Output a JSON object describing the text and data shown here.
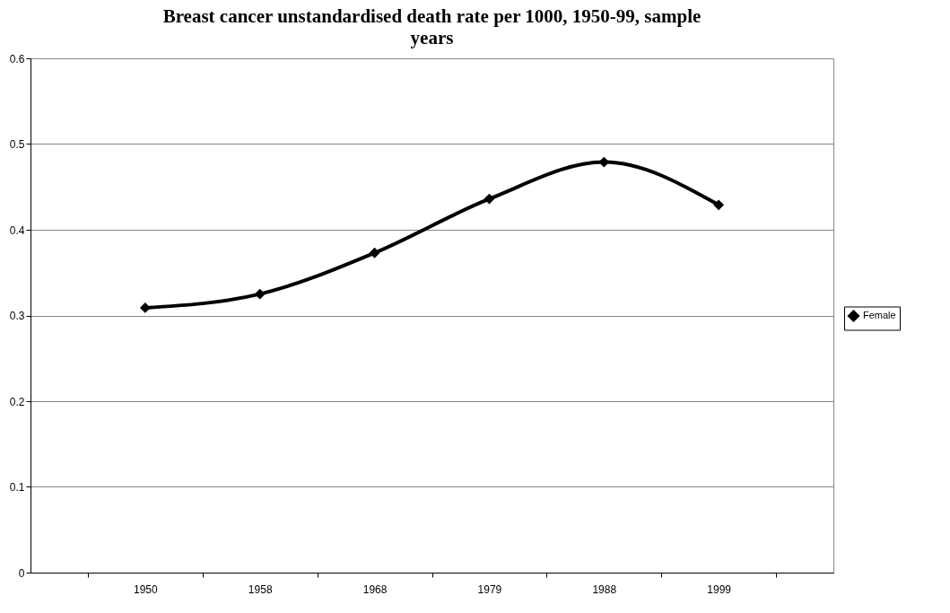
{
  "chart_data": {
    "type": "line",
    "title": "Breast cancer unstandardised death rate per 1000, 1950-99, sample years",
    "categories": [
      "1950",
      "1958",
      "1968",
      "1979",
      "1988",
      "1999"
    ],
    "series": [
      {
        "name": "Female",
        "color": "#000000",
        "values": [
          0.309,
          0.325,
          0.373,
          0.436,
          0.479,
          0.429
        ]
      }
    ],
    "ylim": [
      0,
      0.6
    ],
    "yticks": [
      0,
      0.1,
      0.2,
      0.3,
      0.4,
      0.5,
      0.6
    ],
    "grid": "y",
    "legend": "right",
    "marker": "diamond",
    "line_style": "solid"
  }
}
